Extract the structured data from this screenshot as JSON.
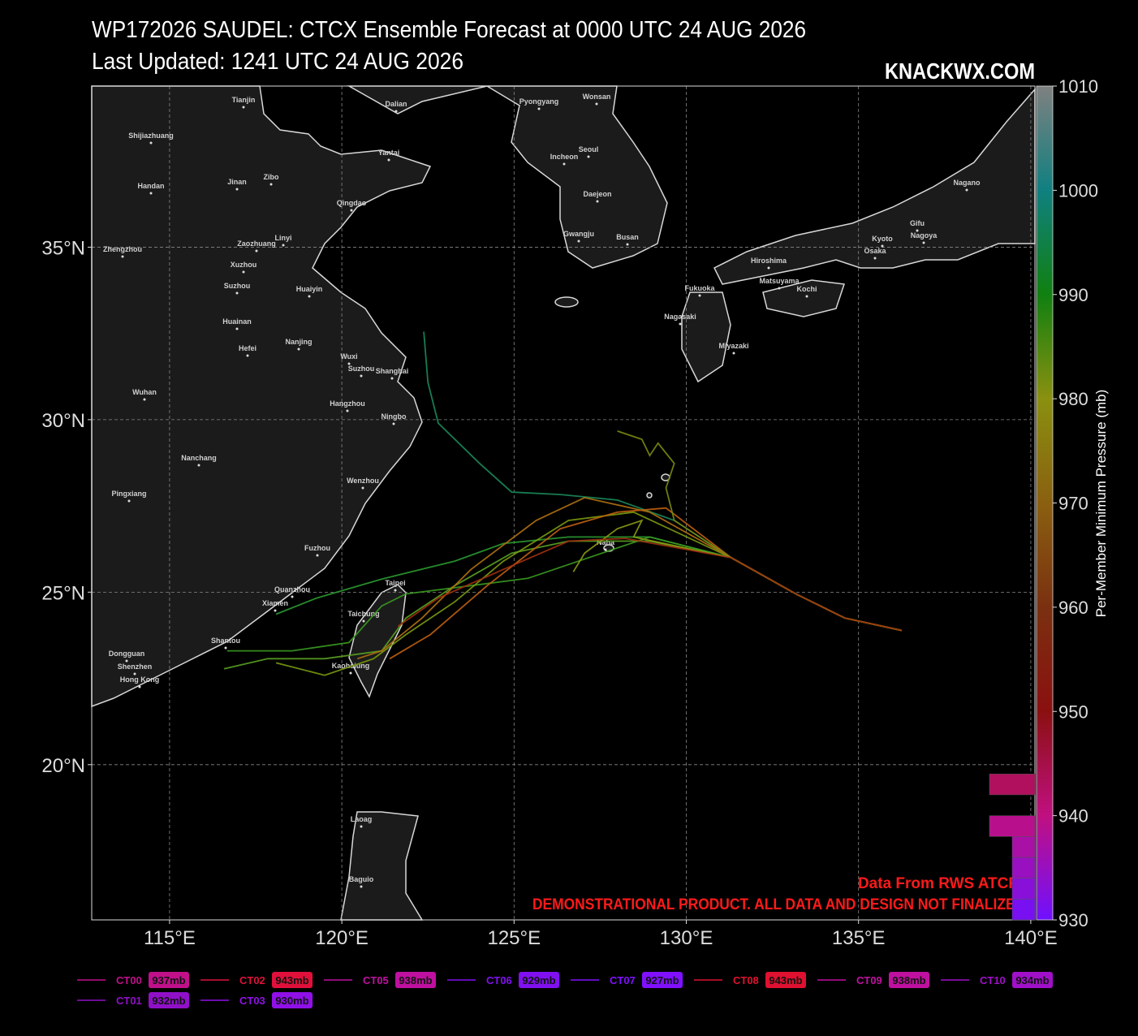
{
  "title": "WP172026 SAUDEL: CTCX Ensemble Forecast at 0000 UTC 24 AUG 2026",
  "subtitle": "Last Updated: 1241 UTC 24 AUG 2026",
  "brand": "KNACKWX.COM",
  "notes": [
    "Data From RWS ATCF©",
    "DEMONSTRATIONAL PRODUCT. ALL DATA AND DESIGN NOT FINALIZED."
  ],
  "xlim": [
    112.74,
    140.12
  ],
  "ylim": [
    15.5,
    39.67
  ],
  "xticks": [
    {
      "value": 115,
      "label": "115°E"
    },
    {
      "value": 120,
      "label": "120°E"
    },
    {
      "value": 125,
      "label": "125°E"
    },
    {
      "value": 130,
      "label": "130°E"
    },
    {
      "value": 135,
      "label": "135°E"
    },
    {
      "value": 140,
      "label": "140°E"
    }
  ],
  "yticks": [
    {
      "value": 20,
      "label": "20°N"
    },
    {
      "value": 25,
      "label": "25°N"
    },
    {
      "value": 30,
      "label": "30°N"
    },
    {
      "value": 35,
      "label": "35°N"
    }
  ],
  "grid": true,
  "tracks": [
    {
      "color": "#1a8a5a",
      "lon": [
        136.25,
        134.6,
        133.18,
        131.3,
        129.65,
        128.0,
        126.35,
        124.93,
        124.0,
        122.8,
        122.5,
        122.38
      ],
      "lat": [
        23.89,
        24.25,
        24.95,
        26.0,
        27.08,
        27.67,
        27.83,
        27.9,
        28.73,
        29.9,
        31.08,
        32.55
      ]
    },
    {
      "color": "#2a9a30",
      "lon": [
        136.25,
        134.6,
        133.18,
        131.3,
        128.94,
        126.58,
        124.69,
        123.28,
        121.16,
        119.27,
        118.09
      ],
      "lat": [
        23.89,
        24.25,
        24.95,
        26.0,
        26.6,
        26.6,
        26.41,
        25.9,
        25.38,
        24.83,
        24.36
      ]
    },
    {
      "color": "#3a9a20",
      "lon": [
        136.25,
        134.6,
        133.18,
        131.3,
        128.94,
        125.4,
        123.75,
        121.86,
        121.16,
        120.21,
        118.56,
        116.67
      ],
      "lat": [
        23.89,
        24.25,
        24.95,
        26.0,
        26.6,
        25.4,
        25.19,
        24.95,
        24.6,
        23.54,
        23.3,
        23.3
      ]
    },
    {
      "color": "#5aa020",
      "lon": [
        136.25,
        134.6,
        133.18,
        131.3,
        128.94,
        126.58,
        124.93,
        123.28,
        121.86,
        121.16,
        119.5,
        117.85,
        116.58
      ],
      "lat": [
        23.89,
        24.25,
        24.95,
        26.0,
        26.48,
        26.48,
        26.13,
        25.19,
        24.25,
        23.3,
        23.07,
        23.07,
        22.78
      ]
    },
    {
      "color": "#7a9a10",
      "lon": [
        136.25,
        134.6,
        133.18,
        131.3,
        128.47,
        126.58,
        124.69,
        123.28,
        121.86,
        120.92,
        119.5,
        118.09
      ],
      "lat": [
        23.89,
        24.25,
        24.95,
        26.0,
        27.32,
        27.08,
        25.9,
        24.72,
        23.77,
        23.07,
        22.59,
        22.95
      ]
    },
    {
      "color": "#b07010",
      "lon": [
        136.25,
        134.6,
        133.18,
        131.3,
        128.94,
        127.05,
        125.64,
        123.75,
        122.33,
        121.16,
        120.45
      ],
      "lat": [
        23.89,
        24.25,
        24.95,
        26.0,
        27.32,
        27.74,
        27.08,
        25.66,
        24.25,
        23.3,
        23.07
      ]
    },
    {
      "color": "#c06010",
      "lon": [
        136.25,
        134.6,
        133.18,
        131.3,
        129.41,
        128.0,
        126.34,
        124.22,
        122.57,
        121.39
      ],
      "lat": [
        23.89,
        24.25,
        24.95,
        26.0,
        27.44,
        27.32,
        26.84,
        25.19,
        23.77,
        23.07
      ]
    },
    {
      "color": "#7a8a10",
      "lon": [
        136.25,
        134.6,
        133.18,
        131.3,
        129.65,
        129.41,
        129.65,
        129.18,
        128.94,
        128.71,
        128.0
      ],
      "lat": [
        23.89,
        24.25,
        24.95,
        26.0,
        27.08,
        28.02,
        28.73,
        29.32,
        28.96,
        29.43,
        29.67
      ]
    },
    {
      "color": "#8a9a10",
      "lon": [
        136.25,
        134.6,
        133.18,
        131.3,
        128.47,
        128.71,
        128.0,
        127.05,
        126.72
      ],
      "lat": [
        23.89,
        24.25,
        24.95,
        26.0,
        26.6,
        27.08,
        26.84,
        26.13,
        25.59
      ]
    },
    {
      "color": "#a03010",
      "lon": [
        136.25,
        134.6,
        133.18,
        131.3,
        128.23,
        126.58,
        124.69,
        122.8,
        121.63
      ],
      "lat": [
        23.89,
        24.25,
        24.95,
        26.0,
        26.56,
        26.48,
        25.66,
        24.83,
        24.01
      ]
    }
  ],
  "cities": [
    "Tianjin",
    "Dalian",
    "Pyongyang",
    "Wonsan",
    "Shijiazhuang",
    "Yantai",
    "Seoul",
    "Incheon",
    "Handan",
    "Jinan",
    "Zibo",
    "Qingdao",
    "Daejeon",
    "Nagano",
    "Gwangju",
    "Busan",
    "Gifu",
    "Kyoto",
    "Nagoya",
    "Osaka",
    "Zhengzhou",
    "Linyi",
    "Zaozhuang",
    "Xuzhou",
    "Hiroshima",
    "Matsuyama",
    "Kochi",
    "Suzhou",
    "Huaiyin",
    "Fukuoka",
    "Nagasaki",
    "Huainan",
    "Hefei",
    "Nanjing",
    "Miyazaki",
    "Wuxi",
    "Suzhou",
    "Shanghai",
    "Wuhan",
    "Hangzhou",
    "Ningbo",
    "Nanchang",
    "Wenzhou",
    "Pingxiang",
    "Fuzhou",
    "Naha",
    "Quanzhou",
    "Taipei",
    "Xiamen",
    "Taichung",
    "Shantou",
    "Dongguan",
    "Shenzhen",
    "Kaohsiung",
    "Hong Kong",
    "Laoag",
    "Baguio"
  ],
  "colorbar": {
    "label": "Per-Member Minimum Pressure (mb)",
    "lim": [
      930,
      1010
    ],
    "ticks": [
      930,
      940,
      950,
      960,
      970,
      980,
      990,
      1000,
      1010
    ],
    "colors": [
      "#7010ff",
      "#c01080",
      "#8a1010",
      "#7a3010",
      "#8a6010",
      "#8a9010",
      "#108010",
      "#108080",
      "#808080"
    ]
  },
  "histogram": {
    "bins": [
      930,
      932,
      934,
      936,
      938,
      940,
      942,
      944
    ],
    "counts": [
      1,
      1,
      1,
      1,
      2,
      0,
      2
    ]
  },
  "legend": [
    {
      "name": "CT00",
      "pressure": 937,
      "label": "937mb",
      "color": "#c0108a"
    },
    {
      "name": "CT01",
      "pressure": 932,
      "label": "932mb",
      "color": "#9010c8"
    },
    {
      "name": "CT02",
      "pressure": 943,
      "label": "943mb",
      "color": "#e0103a"
    },
    {
      "name": "CT03",
      "pressure": 930,
      "label": "930mb",
      "color": "#9010e8"
    },
    {
      "name": "CT05",
      "pressure": 938,
      "label": "938mb",
      "color": "#c010a0"
    },
    {
      "name": "CT06",
      "pressure": 929,
      "label": "929mb",
      "color": "#8010f0"
    },
    {
      "name": "CT07",
      "pressure": 927,
      "label": "927mb",
      "color": "#8010ff"
    },
    {
      "name": "CT08",
      "pressure": 943,
      "label": "943mb",
      "color": "#e01030"
    },
    {
      "name": "CT09",
      "pressure": 938,
      "label": "938mb",
      "color": "#c010a0"
    },
    {
      "name": "CT10",
      "pressure": 934,
      "label": "934mb",
      "color": "#a010c8"
    }
  ]
}
